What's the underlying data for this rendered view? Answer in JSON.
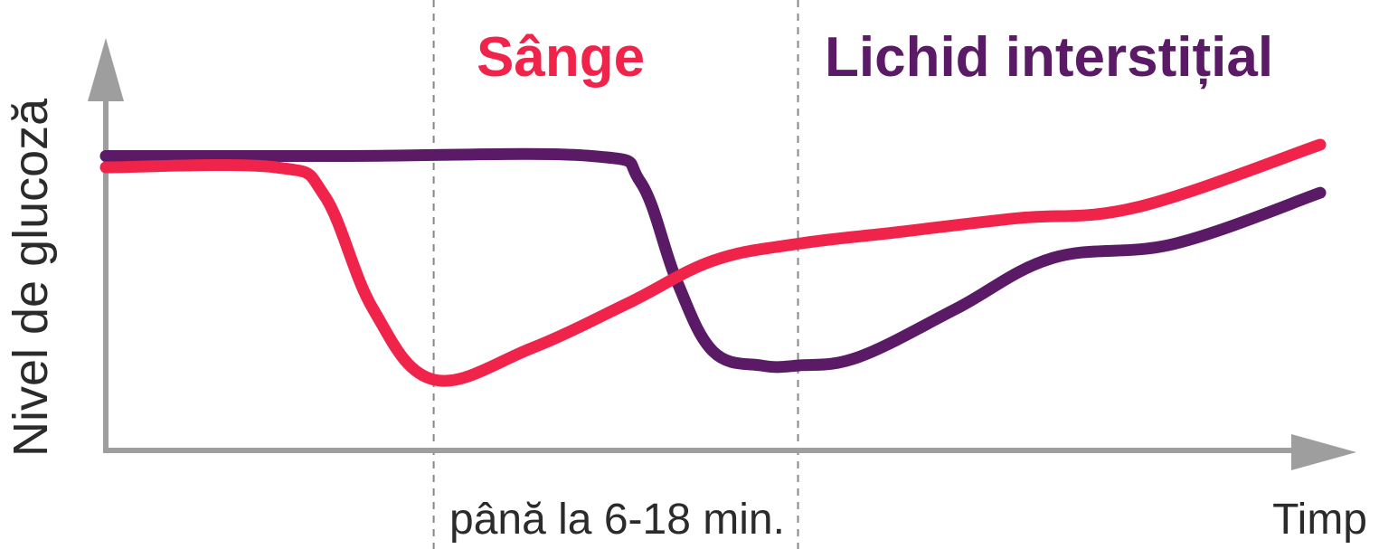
{
  "chart_data": {
    "type": "line",
    "xlabel": "Timp",
    "ylabel": "Nivel de glucoză",
    "xlim": [
      0,
      100
    ],
    "ylim": [
      0,
      100
    ],
    "grid": false,
    "annotation": "până la 6-18 min.",
    "guides_x": [
      27,
      57
    ],
    "series": [
      {
        "name": "Sânge",
        "color": "#f0234a",
        "x": [
          0,
          14,
          18,
          22,
          27,
          35,
          43,
          50,
          57,
          65,
          75,
          85,
          100
        ],
        "y": [
          100,
          100,
          90,
          50,
          25,
          36,
          52,
          67,
          73,
          77,
          82,
          86,
          108
        ]
      },
      {
        "name": "Lichid interstițial",
        "color": "#5a1a66",
        "x": [
          0,
          20,
          40,
          44,
          47,
          50,
          54,
          57,
          62,
          70,
          78,
          88,
          100
        ],
        "y": [
          104,
          104,
          104,
          95,
          60,
          35,
          30,
          30,
          33,
          50,
          68,
          73,
          91
        ]
      }
    ],
    "axis_color": "#9e9e9e",
    "guide_color": "#888888"
  }
}
